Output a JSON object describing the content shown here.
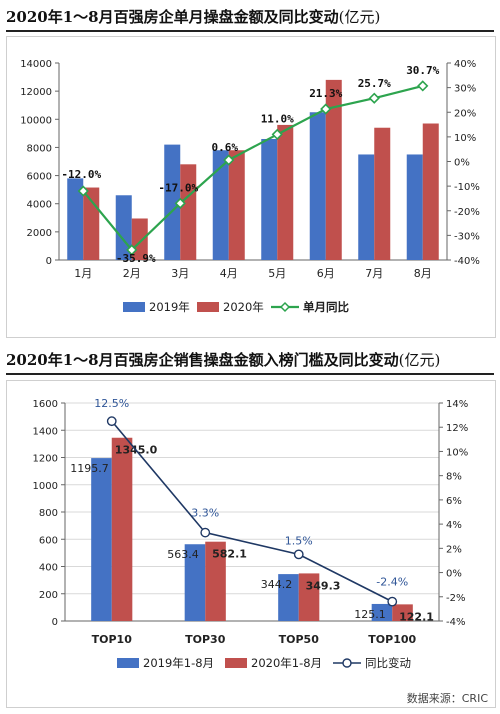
{
  "chart_data": [
    {
      "type": "bar",
      "title": "2020年1～8月百强房企单月操盘金额及同比变动",
      "title_unit": "(亿元)",
      "categories": [
        "1月",
        "2月",
        "3月",
        "4月",
        "5月",
        "6月",
        "7月",
        "8月"
      ],
      "series": [
        {
          "name": "2019年",
          "type": "bar",
          "color": "#4472C4",
          "values": [
            5800,
            4600,
            8200,
            7800,
            8600,
            10500,
            7500,
            7500
          ]
        },
        {
          "name": "2020年",
          "type": "bar",
          "color": "#C0504D",
          "values": [
            5150,
            2950,
            6800,
            7800,
            9600,
            12800,
            9400,
            9700
          ]
        },
        {
          "name": "单月同比",
          "type": "line",
          "axis": "right",
          "color": "#2DA44E",
          "values": [
            -12.0,
            -35.9,
            -17.0,
            0.6,
            11.0,
            21.3,
            25.7,
            30.7
          ],
          "labels": [
            "-12.0%",
            "-35.9%",
            "-17.0%",
            "0.6%",
            "11.0%",
            "21.3%",
            "25.7%",
            "30.7%"
          ]
        }
      ],
      "y_left": {
        "min": 0,
        "max": 14000,
        "ticks": [
          "0",
          "2000",
          "4000",
          "6000",
          "8000",
          "10000",
          "12000",
          "14000"
        ]
      },
      "y_right": {
        "min": -40,
        "max": 40,
        "ticks": [
          "-40%",
          "-30%",
          "-20%",
          "-10%",
          "0%",
          "10%",
          "20%",
          "30%",
          "40%"
        ]
      },
      "grid": false,
      "legend": "bottom"
    },
    {
      "type": "bar",
      "title": "2020年1～8月百强房企销售操盘金额入榜门槛及同比变动",
      "title_unit": "(亿元)",
      "categories": [
        "TOP10",
        "TOP30",
        "TOP50",
        "TOP100"
      ],
      "series": [
        {
          "name": "2019年1-8月",
          "type": "bar",
          "color": "#4472C4",
          "values": [
            1195.7,
            563.4,
            344.2,
            125.1
          ],
          "labels": [
            "1195.7",
            "563.4",
            "344.2",
            "125.1"
          ]
        },
        {
          "name": "2020年1-8月",
          "type": "bar",
          "color": "#C0504D",
          "values": [
            1345.0,
            582.1,
            349.3,
            122.1
          ],
          "labels": [
            "1345.0",
            "582.1",
            "349.3",
            "122.1"
          ]
        },
        {
          "name": "同比变动",
          "type": "line",
          "axis": "right",
          "color": "#1F3864",
          "values": [
            12.5,
            3.3,
            1.5,
            -2.4
          ],
          "labels": [
            "12.5%",
            "3.3%",
            "1.5%",
            "-2.4%"
          ]
        }
      ],
      "y_left": {
        "min": 0,
        "max": 1600,
        "ticks": [
          "0",
          "200",
          "400",
          "600",
          "800",
          "1000",
          "1200",
          "1400",
          "1600"
        ]
      },
      "y_right": {
        "min": -4,
        "max": 14,
        "ticks": [
          "-4%",
          "-2%",
          "0%",
          "2%",
          "4%",
          "6%",
          "8%",
          "10%",
          "12%",
          "14%"
        ]
      },
      "grid": true,
      "legend": "bottom"
    }
  ],
  "source": "数据来源：CRIC"
}
